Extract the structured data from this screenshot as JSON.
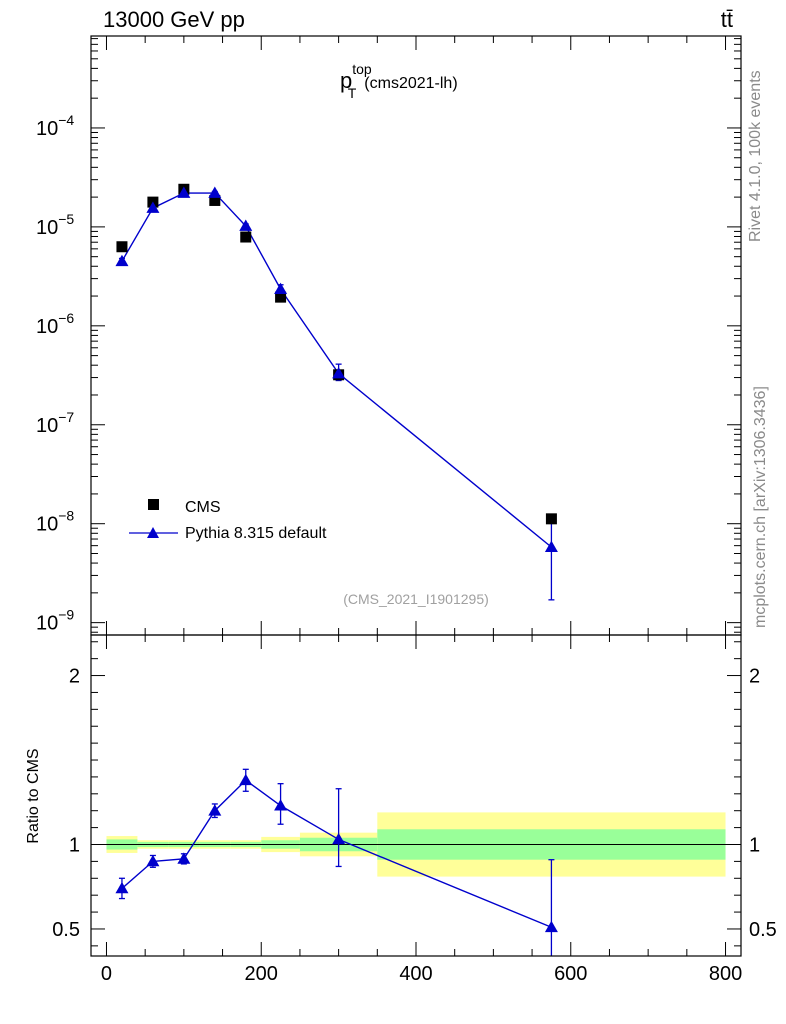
{
  "header": {
    "left_title": "13000 GeV pp",
    "right_title": "tt̄"
  },
  "side_labels": {
    "rivet": "Rivet 4.1.0,  100k events",
    "mcplots": "mcplots.cern.ch [arXiv:1306.3436]"
  },
  "chart_data": [
    {
      "type": "scatter",
      "panel": "main",
      "title": {
        "base": "p",
        "sup": "top",
        "sub": "T",
        "suffix": "(cms2021-lh)"
      },
      "analysis_id": "(CMS_2021_I1901295)",
      "xlabel": "",
      "ylabel": "",
      "yscale": "log",
      "xlim": [
        -20,
        820
      ],
      "ylim": [
        7.5e-10,
        0.00085
      ],
      "y_ticks": [
        {
          "value": 1e-09,
          "base": "10",
          "exp": "−9"
        },
        {
          "value": 1e-08,
          "base": "10",
          "exp": "−8"
        },
        {
          "value": 1e-07,
          "base": "10",
          "exp": "−7"
        },
        {
          "value": 1e-06,
          "base": "10",
          "exp": "−6"
        },
        {
          "value": 1e-05,
          "base": "10",
          "exp": "−5"
        },
        {
          "value": 0.0001,
          "base": "10",
          "exp": "−4"
        }
      ],
      "legend_position": "bottom-left",
      "series": [
        {
          "name": "CMS",
          "marker": "square",
          "color": "#000000",
          "x": [
            20,
            60,
            100,
            140,
            180,
            225,
            300,
            575
          ],
          "y": [
            6.3e-06,
            1.78e-05,
            2.4e-05,
            1.85e-05,
            7.9e-06,
            1.95e-06,
            3.2e-07,
            1.12e-08
          ]
        },
        {
          "name": "Pythia 8.315 default",
          "marker": "triangle",
          "line": true,
          "color": "#0000cc",
          "x": [
            20,
            60,
            100,
            140,
            180,
            225,
            300,
            575
          ],
          "y": [
            4.5e-06,
            1.55e-05,
            2.2e-05,
            2.2e-05,
            1.02e-05,
            2.35e-06,
            3.3e-07,
            5.8e-09
          ],
          "y_err_low": [
            3e-07,
            7e-07,
            8e-07,
            8e-07,
            5e-07,
            2e-07,
            5e-08,
            4.1e-09
          ],
          "y_err_high": [
            3e-07,
            7e-07,
            8e-07,
            8e-07,
            5e-07,
            2.5e-07,
            8e-08,
            5e-09
          ]
        }
      ]
    },
    {
      "type": "scatter",
      "panel": "ratio",
      "xlabel": "",
      "ylabel": "Ratio to CMS",
      "xlim": [
        -20,
        820
      ],
      "ylim": [
        0.34,
        2.24
      ],
      "x_ticks": [
        0,
        200,
        400,
        600,
        800
      ],
      "y_ticks": [
        0.5,
        1,
        2
      ],
      "reference_line": 1,
      "bands": [
        {
          "x_low": 0,
          "x_high": 40,
          "inner": [
            0.97,
            1.03
          ],
          "outer": [
            0.95,
            1.05
          ]
        },
        {
          "x_low": 40,
          "x_high": 80,
          "inner": [
            0.985,
            1.015
          ],
          "outer": [
            0.975,
            1.025
          ]
        },
        {
          "x_low": 80,
          "x_high": 120,
          "inner": [
            0.985,
            1.015
          ],
          "outer": [
            0.975,
            1.025
          ]
        },
        {
          "x_low": 120,
          "x_high": 160,
          "inner": [
            0.985,
            1.015
          ],
          "outer": [
            0.975,
            1.025
          ]
        },
        {
          "x_low": 160,
          "x_high": 200,
          "inner": [
            0.985,
            1.015
          ],
          "outer": [
            0.975,
            1.025
          ]
        },
        {
          "x_low": 200,
          "x_high": 250,
          "inner": [
            0.975,
            1.025
          ],
          "outer": [
            0.955,
            1.045
          ]
        },
        {
          "x_low": 250,
          "x_high": 350,
          "inner": [
            0.96,
            1.04
          ],
          "outer": [
            0.93,
            1.07
          ]
        },
        {
          "x_low": 350,
          "x_high": 800,
          "inner": [
            0.91,
            1.09
          ],
          "outer": [
            0.81,
            1.19
          ]
        }
      ],
      "series": [
        {
          "name": "Pythia 8.315 default",
          "marker": "triangle",
          "line": true,
          "color": "#0000cc",
          "x": [
            20,
            60,
            100,
            140,
            180,
            225,
            300,
            575
          ],
          "y": [
            0.74,
            0.9,
            0.915,
            1.2,
            1.38,
            1.23,
            1.03,
            0.51
          ],
          "y_err_low": [
            0.06,
            0.035,
            0.03,
            0.04,
            0.065,
            0.11,
            0.16,
            0.2
          ],
          "y_err_high": [
            0.06,
            0.035,
            0.03,
            0.04,
            0.065,
            0.13,
            0.3,
            0.4
          ]
        }
      ]
    }
  ]
}
